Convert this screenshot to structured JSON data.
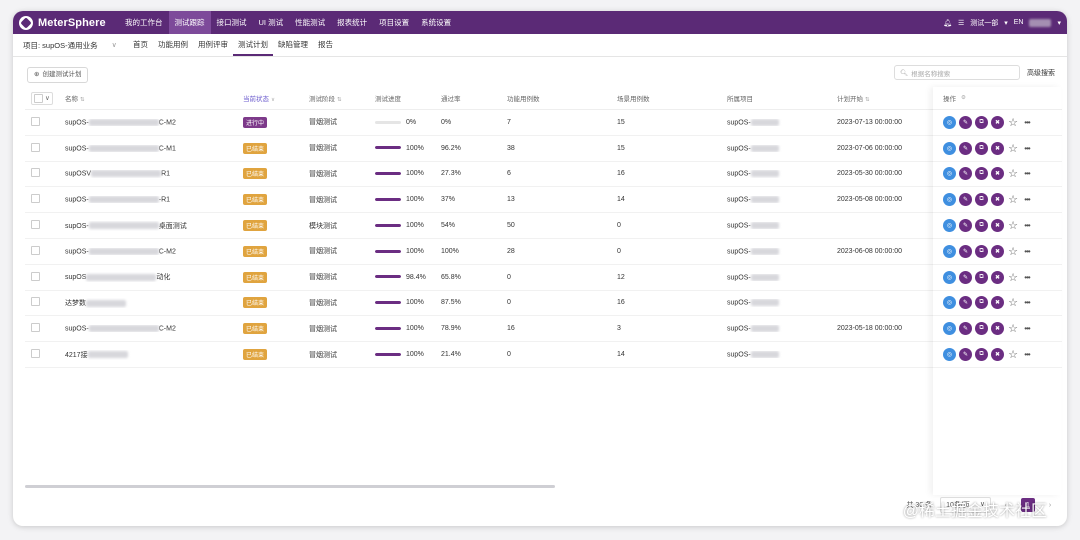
{
  "app": {
    "logo_text": "MeterSphere",
    "nav": [
      "我的工作台",
      "测试跟踪",
      "接口测试",
      "UI 测试",
      "性能测试",
      "报表统计",
      "项目设置",
      "系统设置"
    ],
    "nav_active_index": 1,
    "workspace": "测试一部",
    "lang": "EN"
  },
  "subnav": {
    "project_label": "项目: supOS-通用业务",
    "items": [
      "首页",
      "功能用例",
      "用例评审",
      "测试计划",
      "缺陷管理",
      "报告"
    ],
    "active_index": 3
  },
  "toolbar": {
    "create_label": "创建测试计划",
    "search_placeholder": "根据名称搜索",
    "advanced_search": "高级搜索"
  },
  "table": {
    "columns": [
      "名称",
      "当前状态",
      "测试阶段",
      "测试进度",
      "通过率",
      "功能用例数",
      "场景用例数",
      "所属项目",
      "计划开始",
      "操作"
    ],
    "rows": [
      {
        "name_prefix": "supOS-",
        "name_suffix": "C-M2",
        "status": "进行中",
        "stage": "冒烟测试",
        "progress": "0%",
        "progress_fill": 0,
        "pass_rate": "0%",
        "func_cases": "7",
        "scen_cases": "15",
        "project": "supOS-",
        "start": "2023-07-13 00:00:00"
      },
      {
        "name_prefix": "supOS-",
        "name_suffix": "C-M1",
        "status": "已结束",
        "stage": "冒烟测试",
        "progress": "100%",
        "progress_fill": 1,
        "pass_rate": "96.2%",
        "func_cases": "38",
        "scen_cases": "15",
        "project": "supOS-",
        "start": "2023-07-06 00:00:00"
      },
      {
        "name_prefix": "supOSV",
        "name_suffix": "R1",
        "status": "已结束",
        "stage": "冒烟测试",
        "progress": "100%",
        "progress_fill": 1,
        "pass_rate": "27.3%",
        "func_cases": "6",
        "scen_cases": "16",
        "project": "supOS-",
        "start": "2023-05-30 00:00:00"
      },
      {
        "name_prefix": "supOS-",
        "name_suffix": "-R1",
        "status": "已结束",
        "stage": "冒烟测试",
        "progress": "100%",
        "progress_fill": 1,
        "pass_rate": "37%",
        "func_cases": "13",
        "scen_cases": "14",
        "project": "supOS-",
        "start": "2023-05-08 00:00:00"
      },
      {
        "name_prefix": "supOS-",
        "name_suffix": "桌面测试",
        "status": "已结束",
        "stage": "模块测试",
        "progress": "100%",
        "progress_fill": 1,
        "pass_rate": "54%",
        "func_cases": "50",
        "scen_cases": "0",
        "project": "supOS-",
        "start": ""
      },
      {
        "name_prefix": "supOS-",
        "name_suffix": "C-M2",
        "status": "已结束",
        "stage": "冒烟测试",
        "progress": "100%",
        "progress_fill": 1,
        "pass_rate": "100%",
        "func_cases": "28",
        "scen_cases": "0",
        "project": "supOS-",
        "start": "2023-06-08 00:00:00"
      },
      {
        "name_prefix": "supOS",
        "name_suffix": "动化",
        "status": "已结束",
        "stage": "冒烟测试",
        "progress": "98.4%",
        "progress_fill": 0.984,
        "pass_rate": "65.8%",
        "func_cases": "0",
        "scen_cases": "12",
        "project": "supOS-",
        "start": ""
      },
      {
        "name_prefix": "达梦数",
        "name_suffix": "",
        "status": "已结束",
        "stage": "冒烟测试",
        "progress": "100%",
        "progress_fill": 1,
        "pass_rate": "87.5%",
        "func_cases": "0",
        "scen_cases": "16",
        "project": "supOS-",
        "start": ""
      },
      {
        "name_prefix": "supOS-",
        "name_suffix": "C-M2",
        "status": "已结束",
        "stage": "冒烟测试",
        "progress": "100%",
        "progress_fill": 1,
        "pass_rate": "78.9%",
        "func_cases": "16",
        "scen_cases": "3",
        "project": "supOS-",
        "start": "2023-05-18 00:00:00"
      },
      {
        "name_prefix": "4217接",
        "name_suffix": "",
        "status": "已结束",
        "stage": "冒烟测试",
        "progress": "100%",
        "progress_fill": 1,
        "pass_rate": "21.4%",
        "func_cases": "0",
        "scen_cases": "14",
        "project": "supOS-",
        "start": ""
      }
    ]
  },
  "pager": {
    "total": "共 36 条",
    "page_size": "10条/页",
    "current_page": "1"
  },
  "watermark": "@稀土掘金技术社区",
  "colors": {
    "brand": "#5b2a76",
    "done_badge": "#e0a43f",
    "running_badge": "#7d3a8a",
    "run_icon": "#3f8fe0"
  }
}
